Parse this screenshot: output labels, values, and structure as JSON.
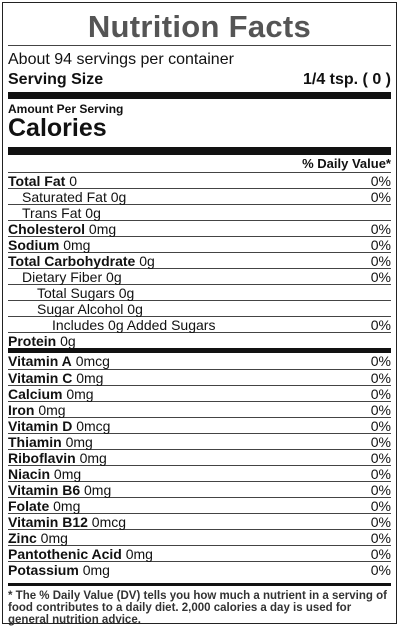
{
  "title": "Nutrition Facts",
  "servings_per_container": "About 94 servings per container",
  "serving_size_label": "Serving Size",
  "serving_size_value": "1/4 tsp. ( 0 )",
  "amount_per_serving": "Amount Per Serving",
  "calories_label": "Calories",
  "dv_header": "% Daily Value*",
  "nutrients": [
    {
      "label": "Total Fat",
      "amount": "0",
      "dv": "0%"
    },
    {
      "label": "Saturated Fat",
      "amount": "0g",
      "dv": "0%"
    },
    {
      "label": "Trans Fat",
      "amount": "0g",
      "dv": ""
    },
    {
      "label": "Cholesterol",
      "amount": "0mg",
      "dv": "0%"
    },
    {
      "label": "Sodium",
      "amount": "0mg",
      "dv": "0%"
    },
    {
      "label": "Total Carbohydrate",
      "amount": "0g",
      "dv": "0%"
    },
    {
      "label": "Dietary Fiber",
      "amount": "0g",
      "dv": "0%"
    },
    {
      "label": "Total Sugars",
      "amount": "0g",
      "dv": ""
    },
    {
      "label": "Sugar Alcohol",
      "amount": "0g",
      "dv": ""
    },
    {
      "label": "Includes 0g Added Sugars",
      "amount": "",
      "dv": "0%"
    },
    {
      "label": "Protein",
      "amount": "0g",
      "dv": ""
    }
  ],
  "vitamins": [
    {
      "label": "Vitamin A",
      "amount": "0mcg",
      "dv": "0%"
    },
    {
      "label": "Vitamin C",
      "amount": "0mg",
      "dv": "0%"
    },
    {
      "label": "Calcium",
      "amount": "0mg",
      "dv": "0%"
    },
    {
      "label": "Iron",
      "amount": "0mg",
      "dv": "0%"
    },
    {
      "label": "Vitamin D",
      "amount": "0mcg",
      "dv": "0%"
    },
    {
      "label": "Thiamin",
      "amount": "0mg",
      "dv": "0%"
    },
    {
      "label": "Riboflavin",
      "amount": "0mg",
      "dv": "0%"
    },
    {
      "label": "Niacin",
      "amount": "0mg",
      "dv": "0%"
    },
    {
      "label": "Vitamin B6",
      "amount": "0mg",
      "dv": "0%"
    },
    {
      "label": "Folate",
      "amount": "0mg",
      "dv": "0%"
    },
    {
      "label": "Vitamin B12",
      "amount": "0mcg",
      "dv": "0%"
    },
    {
      "label": "Zinc",
      "amount": "0mg",
      "dv": "0%"
    },
    {
      "label": "Pantothenic Acid",
      "amount": "0mg",
      "dv": "0%"
    },
    {
      "label": "Potassium",
      "amount": "0mg",
      "dv": "0%"
    }
  ],
  "footnote": "* The % Daily Value (DV) tells you how much a nutrient in a serving of food contributes to a daily diet. 2,000 calories a day is used for general nutrition advice."
}
